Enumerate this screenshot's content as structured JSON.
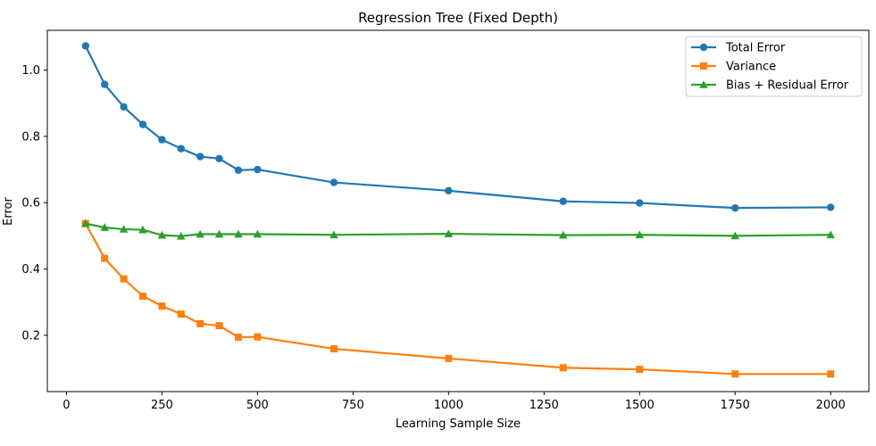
{
  "chart_data": {
    "type": "line",
    "title": "Regression Tree (Fixed Depth)",
    "xlabel": "Learning Sample Size",
    "ylabel": "Error",
    "xlim": [
      -50,
      2100
    ],
    "ylim": [
      0.03,
      1.12
    ],
    "xticks": [
      0,
      250,
      500,
      750,
      1000,
      1250,
      1500,
      1750,
      2000
    ],
    "yticks": [
      0.2,
      0.4,
      0.6,
      0.8,
      1.0
    ],
    "ytick_labels": [
      "0.2",
      "0.4",
      "0.6",
      "0.8",
      "1.0"
    ],
    "grid": false,
    "legend_position": "top-right",
    "x": [
      50,
      100,
      150,
      200,
      250,
      300,
      350,
      400,
      450,
      500,
      700,
      1000,
      1300,
      1500,
      1750,
      2000
    ],
    "series": [
      {
        "name": "Total Error",
        "color": "#1f77b4",
        "marker": "circle",
        "values": [
          1.073,
          0.957,
          0.889,
          0.836,
          0.79,
          0.763,
          0.739,
          0.733,
          0.698,
          0.7,
          0.661,
          0.636,
          0.604,
          0.599,
          0.584,
          0.586
        ]
      },
      {
        "name": "Variance",
        "color": "#ff7f0e",
        "marker": "square",
        "values": [
          0.537,
          0.432,
          0.37,
          0.318,
          0.288,
          0.264,
          0.235,
          0.229,
          0.194,
          0.195,
          0.159,
          0.13,
          0.102,
          0.097,
          0.083,
          0.083
        ]
      },
      {
        "name": "Bias + Residual Error",
        "color": "#2ca02c",
        "marker": "triangle",
        "values": [
          0.537,
          0.525,
          0.52,
          0.518,
          0.502,
          0.499,
          0.505,
          0.505,
          0.505,
          0.505,
          0.503,
          0.506,
          0.502,
          0.503,
          0.5,
          0.503
        ]
      }
    ]
  }
}
